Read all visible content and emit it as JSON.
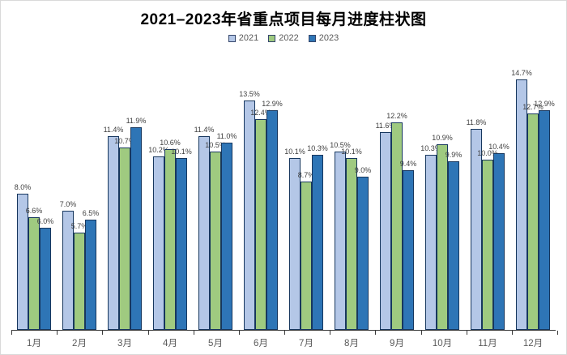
{
  "title": "2021–2023年省重点项目每月进度柱状图",
  "chart_data": {
    "type": "bar",
    "title": "2021–2023年省重点项目每月进度柱状图",
    "categories": [
      "1月",
      "2月",
      "3月",
      "4月",
      "5月",
      "6月",
      "7月",
      "8月",
      "9月",
      "10月",
      "11月",
      "12月"
    ],
    "series": [
      {
        "name": "2021",
        "color": "#b4c7e7",
        "values": [
          8.0,
          7.0,
          11.4,
          10.2,
          11.4,
          13.5,
          10.1,
          10.5,
          11.6,
          10.3,
          11.8,
          14.7
        ]
      },
      {
        "name": "2022",
        "color": "#9fca80",
        "values": [
          6.6,
          5.7,
          10.7,
          10.6,
          10.5,
          12.4,
          8.7,
          10.1,
          12.2,
          10.9,
          10.0,
          12.7
        ]
      },
      {
        "name": "2023",
        "color": "#2e75b6",
        "values": [
          6.0,
          6.5,
          11.9,
          10.1,
          11.0,
          12.9,
          10.3,
          9.0,
          9.4,
          9.9,
          10.4,
          12.9
        ]
      }
    ],
    "unit": "%",
    "value_format": "one-decimal-percent",
    "ylim": [
      0,
      15
    ],
    "grid": false,
    "legend_position": "top",
    "data_labels": true,
    "bar_border_color": "#17375e",
    "label_color": "#404040",
    "axis_color": "#3a3a3a",
    "axis_label_color": "#595959"
  }
}
